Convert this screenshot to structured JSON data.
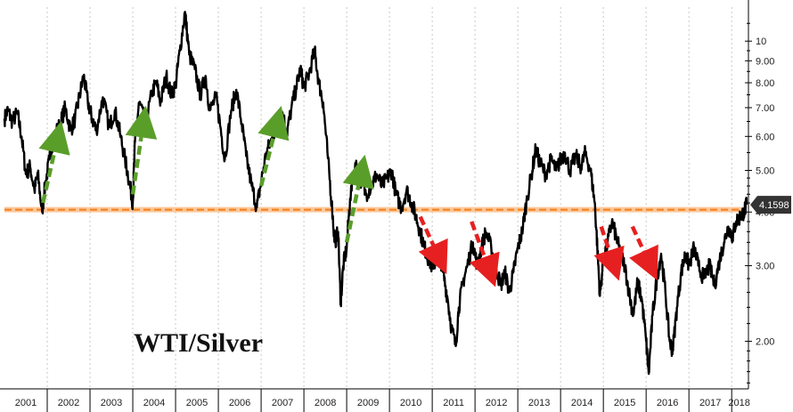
{
  "chart_data": {
    "type": "line",
    "title": "WTI/Silver",
    "xlabel": "",
    "ylabel": "",
    "x_range": [
      2001.0,
      2018.35
    ],
    "ylim": [
      1.55,
      12.0
    ],
    "y_scale": "log",
    "grid": "vertical dashed at year boundaries",
    "x_tick_labels": [
      "2001",
      "2002",
      "2003",
      "2004",
      "2005",
      "2006",
      "2007",
      "2008",
      "2009",
      "2010",
      "2011",
      "2012",
      "2013",
      "2014",
      "2015",
      "2016",
      "2017",
      "2018"
    ],
    "y_ticks": [
      {
        "value": 2.0,
        "label": "2.00"
      },
      {
        "value": 3.0,
        "label": "3.00"
      },
      {
        "value": 4.0,
        "label": "4.00"
      },
      {
        "value": 5.0,
        "label": "5.00"
      },
      {
        "value": 6.0,
        "label": "6.00"
      },
      {
        "value": 7.0,
        "label": "7.00"
      },
      {
        "value": 8.0,
        "label": "8.00"
      },
      {
        "value": 9.0,
        "label": "9.00"
      },
      {
        "value": 10.0,
        "label": "10"
      }
    ],
    "last_value": 4.1598,
    "last_value_label": "4.1598",
    "reference_line": {
      "value": 4.05,
      "color": "#f58220",
      "style": "dashed"
    },
    "series": [
      {
        "color": "#000000",
        "points": [
          [
            2001.0,
            6.6
          ],
          [
            2001.08,
            6.9
          ],
          [
            2001.18,
            6.5
          ],
          [
            2001.3,
            6.8
          ],
          [
            2001.4,
            6.0
          ],
          [
            2001.5,
            4.9
          ],
          [
            2001.6,
            5.1
          ],
          [
            2001.7,
            4.5
          ],
          [
            2001.78,
            4.9
          ],
          [
            2001.88,
            4.0
          ],
          [
            2001.95,
            4.6
          ],
          [
            2002.05,
            5.3
          ],
          [
            2002.15,
            6.0
          ],
          [
            2002.3,
            6.4
          ],
          [
            2002.42,
            7.0
          ],
          [
            2002.55,
            6.2
          ],
          [
            2002.65,
            6.6
          ],
          [
            2002.75,
            7.4
          ],
          [
            2002.85,
            8.3
          ],
          [
            2002.95,
            7.2
          ],
          [
            2003.05,
            6.6
          ],
          [
            2003.15,
            6.2
          ],
          [
            2003.3,
            7.4
          ],
          [
            2003.45,
            6.3
          ],
          [
            2003.58,
            6.9
          ],
          [
            2003.7,
            6.1
          ],
          [
            2003.82,
            5.3
          ],
          [
            2003.92,
            4.7
          ],
          [
            2004.0,
            4.2
          ],
          [
            2004.05,
            5.8
          ],
          [
            2004.15,
            7.2
          ],
          [
            2004.3,
            6.4
          ],
          [
            2004.45,
            7.6
          ],
          [
            2004.55,
            8.0
          ],
          [
            2004.65,
            7.2
          ],
          [
            2004.78,
            8.3
          ],
          [
            2004.9,
            7.5
          ],
          [
            2005.0,
            7.9
          ],
          [
            2005.1,
            9.5
          ],
          [
            2005.22,
            11.7
          ],
          [
            2005.32,
            9.3
          ],
          [
            2005.45,
            8.6
          ],
          [
            2005.58,
            7.5
          ],
          [
            2005.7,
            8.3
          ],
          [
            2005.8,
            6.9
          ],
          [
            2005.95,
            7.4
          ],
          [
            2006.05,
            6.3
          ],
          [
            2006.15,
            5.3
          ],
          [
            2006.3,
            6.9
          ],
          [
            2006.42,
            7.7
          ],
          [
            2006.55,
            6.4
          ],
          [
            2006.65,
            5.4
          ],
          [
            2006.78,
            4.6
          ],
          [
            2006.9,
            4.1
          ],
          [
            2007.0,
            4.7
          ],
          [
            2007.12,
            5.5
          ],
          [
            2007.25,
            5.9
          ],
          [
            2007.38,
            6.5
          ],
          [
            2007.5,
            6.8
          ],
          [
            2007.6,
            6.1
          ],
          [
            2007.7,
            6.9
          ],
          [
            2007.82,
            7.8
          ],
          [
            2007.92,
            8.6
          ],
          [
            2008.0,
            7.8
          ],
          [
            2008.12,
            8.4
          ],
          [
            2008.25,
            9.5
          ],
          [
            2008.35,
            8.0
          ],
          [
            2008.45,
            7.2
          ],
          [
            2008.55,
            5.5
          ],
          [
            2008.65,
            4.2
          ],
          [
            2008.72,
            3.4
          ],
          [
            2008.8,
            3.6
          ],
          [
            2008.86,
            2.45
          ],
          [
            2008.92,
            3.0
          ],
          [
            2009.0,
            3.3
          ],
          [
            2009.08,
            4.3
          ],
          [
            2009.2,
            5.2
          ],
          [
            2009.32,
            4.8
          ],
          [
            2009.45,
            4.4
          ],
          [
            2009.58,
            4.6
          ],
          [
            2009.7,
            4.9
          ],
          [
            2009.82,
            4.6
          ],
          [
            2009.95,
            4.8
          ],
          [
            2010.05,
            5.0
          ],
          [
            2010.15,
            4.4
          ],
          [
            2010.28,
            4.1
          ],
          [
            2010.4,
            4.5
          ],
          [
            2010.52,
            4.2
          ],
          [
            2010.62,
            3.9
          ],
          [
            2010.72,
            3.6
          ],
          [
            2010.82,
            3.3
          ],
          [
            2010.92,
            3.1
          ],
          [
            2011.02,
            2.95
          ],
          [
            2011.15,
            3.3
          ],
          [
            2011.25,
            2.9
          ],
          [
            2011.35,
            2.55
          ],
          [
            2011.45,
            2.15
          ],
          [
            2011.55,
            1.95
          ],
          [
            2011.62,
            2.4
          ],
          [
            2011.72,
            2.75
          ],
          [
            2011.82,
            3.0
          ],
          [
            2011.95,
            3.4
          ],
          [
            2012.05,
            3.0
          ],
          [
            2012.15,
            3.3
          ],
          [
            2012.25,
            3.6
          ],
          [
            2012.38,
            3.3
          ],
          [
            2012.48,
            3.0
          ],
          [
            2012.6,
            2.7
          ],
          [
            2012.7,
            2.9
          ],
          [
            2012.8,
            2.6
          ],
          [
            2012.9,
            2.9
          ],
          [
            2013.0,
            3.3
          ],
          [
            2013.1,
            3.6
          ],
          [
            2013.2,
            4.2
          ],
          [
            2013.32,
            4.9
          ],
          [
            2013.42,
            5.6
          ],
          [
            2013.52,
            5.2
          ],
          [
            2013.65,
            4.9
          ],
          [
            2013.78,
            5.3
          ],
          [
            2013.9,
            5.0
          ],
          [
            2014.0,
            5.3
          ],
          [
            2014.1,
            5.5
          ],
          [
            2014.22,
            5.0
          ],
          [
            2014.35,
            5.4
          ],
          [
            2014.48,
            5.1
          ],
          [
            2014.58,
            5.5
          ],
          [
            2014.7,
            5.0
          ],
          [
            2014.8,
            4.2
          ],
          [
            2014.86,
            3.3
          ],
          [
            2014.92,
            2.55
          ],
          [
            2015.0,
            3.1
          ],
          [
            2015.1,
            3.4
          ],
          [
            2015.2,
            3.8
          ],
          [
            2015.3,
            3.5
          ],
          [
            2015.4,
            3.2
          ],
          [
            2015.5,
            3.0
          ],
          [
            2015.6,
            2.6
          ],
          [
            2015.7,
            2.3
          ],
          [
            2015.8,
            2.75
          ],
          [
            2015.9,
            2.5
          ],
          [
            2016.0,
            2.0
          ],
          [
            2016.06,
            1.68
          ],
          [
            2016.15,
            2.3
          ],
          [
            2016.25,
            2.8
          ],
          [
            2016.35,
            3.2
          ],
          [
            2016.45,
            2.6
          ],
          [
            2016.55,
            2.0
          ],
          [
            2016.62,
            1.9
          ],
          [
            2016.72,
            2.4
          ],
          [
            2016.82,
            2.9
          ],
          [
            2016.92,
            3.2
          ],
          [
            2017.0,
            3.0
          ],
          [
            2017.12,
            3.3
          ],
          [
            2017.22,
            3.0
          ],
          [
            2017.35,
            2.8
          ],
          [
            2017.48,
            3.0
          ],
          [
            2017.6,
            2.7
          ],
          [
            2017.72,
            3.1
          ],
          [
            2017.82,
            3.4
          ],
          [
            2017.92,
            3.7
          ],
          [
            2018.02,
            3.5
          ],
          [
            2018.1,
            3.8
          ],
          [
            2018.2,
            3.9
          ],
          [
            2018.28,
            4.0
          ],
          [
            2018.35,
            4.16
          ]
        ]
      }
    ],
    "annotations": [
      {
        "kind": "up-arrow",
        "color": "#5a9e2a",
        "from": [
          2001.9,
          4.2
        ],
        "to": [
          2002.25,
          6.0
        ]
      },
      {
        "kind": "up-arrow",
        "color": "#5a9e2a",
        "from": [
          2004.0,
          4.4
        ],
        "to": [
          2004.25,
          6.5
        ]
      },
      {
        "kind": "up-arrow",
        "color": "#5a9e2a",
        "from": [
          2007.0,
          4.6
        ],
        "to": [
          2007.38,
          6.5
        ]
      },
      {
        "kind": "up-arrow",
        "color": "#5a9e2a",
        "from": [
          2009.0,
          3.4
        ],
        "to": [
          2009.35,
          5.0
        ]
      },
      {
        "kind": "down-arrow",
        "color": "#e62020",
        "from": [
          2010.72,
          3.9
        ],
        "to": [
          2011.18,
          3.1
        ]
      },
      {
        "kind": "down-arrow",
        "color": "#e62020",
        "from": [
          2011.92,
          3.8
        ],
        "to": [
          2012.35,
          2.9
        ]
      },
      {
        "kind": "down-arrow",
        "color": "#e62020",
        "from": [
          2014.95,
          3.7
        ],
        "to": [
          2015.25,
          3.0
        ]
      },
      {
        "kind": "down-arrow",
        "color": "#e62020",
        "from": [
          2015.68,
          3.7
        ],
        "to": [
          2016.1,
          3.0
        ]
      }
    ]
  }
}
